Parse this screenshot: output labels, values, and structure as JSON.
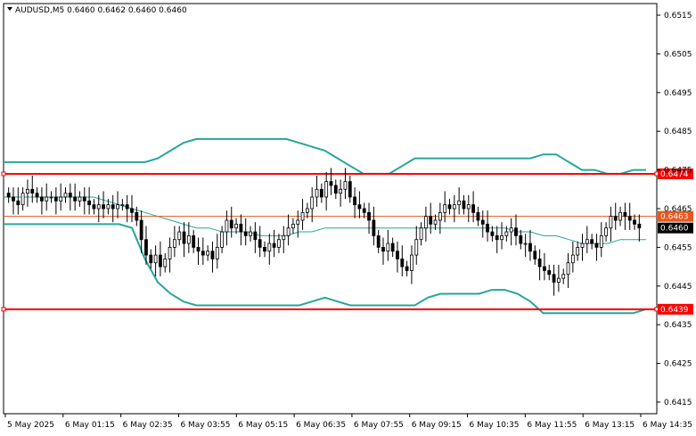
{
  "window": {
    "symbol_line": "AUDUSD,M5  0.6460 0.6462 0.6460 0.6460"
  },
  "colors": {
    "background": "#ffffff",
    "candle_bull": "#ffffff",
    "candle_bear": "#000000",
    "candle_outline": "#000000",
    "band": "#26a69a",
    "mid_band": "#26a69a",
    "support_resistance": "#ff0000",
    "current_line": "#e8561e",
    "price_tag_bg": "#000000"
  },
  "chart_data": {
    "type": "candlestick",
    "symbol": "AUDUSD",
    "timeframe": "M5",
    "ohlc_header": {
      "open": 0.646,
      "high": 0.6462,
      "low": 0.646,
      "close": 0.646
    },
    "ylim": [
      0.6412,
      0.6518
    ],
    "y_ticks": [
      "0.6515",
      "0.6505",
      "0.6495",
      "0.6485",
      "0.6475",
      "0.6465",
      "0.6455",
      "0.6445",
      "0.6435",
      "0.6425",
      "0.6415"
    ],
    "x_ticks": [
      "5 May 2025",
      "6 May 01:15",
      "6 May 02:35",
      "6 May 03:55",
      "6 May 05:15",
      "6 May 06:35",
      "6 May 07:55",
      "6 May 09:15",
      "6 May 10:35",
      "6 May 11:55",
      "6 May 13:15",
      "6 May 14:35"
    ],
    "horizontal_levels": [
      {
        "value": 0.6474,
        "label": "0.6474",
        "style": "resistance"
      },
      {
        "value": 0.6439,
        "label": "0.6439",
        "style": "support"
      },
      {
        "value": 0.6463,
        "label": "0.6463",
        "style": "current"
      }
    ],
    "current_price": {
      "value": 0.646,
      "label": "0.6460"
    },
    "close_series": [
      0.6468,
      0.6467,
      0.6466,
      0.6469,
      0.647,
      0.6469,
      0.6468,
      0.6467,
      0.6468,
      0.6468,
      0.6467,
      0.6468,
      0.6469,
      0.6468,
      0.6467,
      0.6468,
      0.6467,
      0.6466,
      0.6465,
      0.6466,
      0.6465,
      0.6466,
      0.6465,
      0.6466,
      0.6466,
      0.6465,
      0.6464,
      0.6462,
      0.6457,
      0.6453,
      0.6451,
      0.6453,
      0.645,
      0.6452,
      0.6455,
      0.6457,
      0.6459,
      0.6456,
      0.6458,
      0.6455,
      0.6454,
      0.6453,
      0.6454,
      0.6452,
      0.6455,
      0.6459,
      0.6462,
      0.646,
      0.6461,
      0.6459,
      0.6458,
      0.6459,
      0.6457,
      0.6455,
      0.6454,
      0.6456,
      0.6455,
      0.6457,
      0.6458,
      0.646,
      0.6461,
      0.6462,
      0.6464,
      0.6465,
      0.6468,
      0.647,
      0.6468,
      0.6472,
      0.6471,
      0.6469,
      0.647,
      0.6472,
      0.6468,
      0.6466,
      0.6465,
      0.6464,
      0.6462,
      0.6458,
      0.6455,
      0.6454,
      0.6456,
      0.6454,
      0.6452,
      0.645,
      0.6449,
      0.6453,
      0.6457,
      0.646,
      0.6463,
      0.6461,
      0.6462,
      0.6464,
      0.6466,
      0.6465,
      0.6466,
      0.6467,
      0.6465,
      0.6466,
      0.6464,
      0.6462,
      0.6461,
      0.6459,
      0.6458,
      0.6457,
      0.6458,
      0.6459,
      0.646,
      0.6458,
      0.6456,
      0.6456,
      0.6454,
      0.6452,
      0.645,
      0.6449,
      0.6448,
      0.6446,
      0.6447,
      0.6448,
      0.6451,
      0.6453,
      0.6455,
      0.6456,
      0.6457,
      0.6456,
      0.6455,
      0.6458,
      0.646,
      0.6463,
      0.6462,
      0.6464,
      0.6463,
      0.6462,
      0.6461,
      0.646
    ],
    "bollinger": {
      "upper": [
        0.6477,
        0.6477,
        0.6477,
        0.6477,
        0.6477,
        0.6477,
        0.6477,
        0.6477,
        0.6477,
        0.6477,
        0.6477,
        0.6477,
        0.6478,
        0.648,
        0.6482,
        0.6483,
        0.6483,
        0.6483,
        0.6483,
        0.6483,
        0.6483,
        0.6483,
        0.6483,
        0.6482,
        0.6481,
        0.648,
        0.6478,
        0.6476,
        0.6474,
        0.6474,
        0.6474,
        0.6476,
        0.6478,
        0.6478,
        0.6478,
        0.6478,
        0.6478,
        0.6478,
        0.6478,
        0.6478,
        0.6478,
        0.6478,
        0.6479,
        0.6479,
        0.6477,
        0.6475,
        0.6475,
        0.6474,
        0.6474,
        0.6475,
        0.6475
      ],
      "middle": [
        0.6468,
        0.6468,
        0.6468,
        0.6468,
        0.6468,
        0.6468,
        0.6468,
        0.6468,
        0.6467,
        0.6466,
        0.6465,
        0.6464,
        0.6463,
        0.6462,
        0.6461,
        0.646,
        0.646,
        0.6459,
        0.6459,
        0.6459,
        0.6458,
        0.6458,
        0.6458,
        0.6459,
        0.6459,
        0.646,
        0.646,
        0.646,
        0.646,
        0.646,
        0.646,
        0.646,
        0.646,
        0.646,
        0.646,
        0.646,
        0.646,
        0.646,
        0.646,
        0.646,
        0.6459,
        0.6459,
        0.6458,
        0.6458,
        0.6457,
        0.6456,
        0.6456,
        0.6456,
        0.6457,
        0.6457,
        0.6457
      ],
      "lower": [
        0.6461,
        0.6461,
        0.6461,
        0.6461,
        0.6461,
        0.6461,
        0.6461,
        0.6461,
        0.6461,
        0.6461,
        0.646,
        0.6452,
        0.6446,
        0.6443,
        0.6441,
        0.644,
        0.644,
        0.644,
        0.644,
        0.644,
        0.644,
        0.644,
        0.644,
        0.644,
        0.6441,
        0.6442,
        0.6441,
        0.644,
        0.644,
        0.644,
        0.644,
        0.644,
        0.644,
        0.6442,
        0.6443,
        0.6443,
        0.6443,
        0.6443,
        0.6444,
        0.6444,
        0.6443,
        0.6441,
        0.6438,
        0.6438,
        0.6438,
        0.6438,
        0.6438,
        0.6438,
        0.6438,
        0.6438,
        0.6439
      ]
    }
  }
}
